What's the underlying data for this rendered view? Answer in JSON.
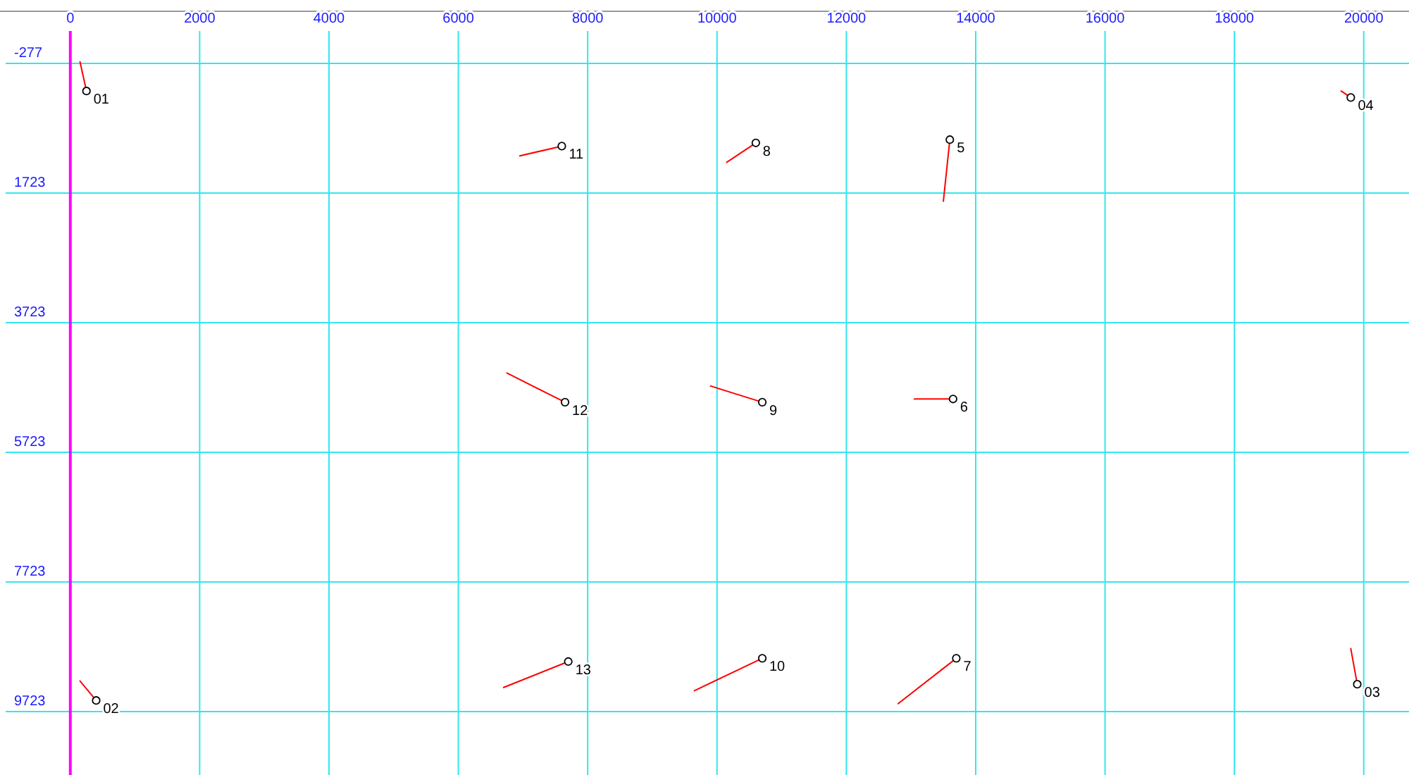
{
  "chart_data": {
    "type": "scatter",
    "xlim": [
      -1000,
      20700
    ],
    "ylim": [
      10700,
      -1080
    ],
    "xticks": [
      0,
      2000,
      4000,
      6000,
      8000,
      10000,
      12000,
      14000,
      16000,
      18000,
      20000
    ],
    "yticks": [
      -277,
      1723,
      3723,
      5723,
      7723,
      9723
    ],
    "grid": true,
    "series": [
      {
        "type": "line",
        "color": "#ff0000",
        "x": [
          150,
          250
        ],
        "values": [
          -300,
          150
        ]
      },
      {
        "type": "line",
        "color": "#ff0000",
        "x": [
          150,
          400
        ],
        "values": [
          9250,
          9550
        ]
      },
      {
        "type": "line",
        "color": "#ff0000",
        "x": [
          19800,
          19900
        ],
        "values": [
          8750,
          9300
        ]
      },
      {
        "type": "line",
        "color": "#ff0000",
        "x": [
          19650,
          19800
        ],
        "values": [
          150,
          250
        ]
      },
      {
        "type": "line",
        "color": "#ff0000",
        "x": [
          13500,
          13600
        ],
        "values": [
          1850,
          900
        ]
      },
      {
        "type": "line",
        "color": "#ff0000",
        "x": [
          13050,
          13650
        ],
        "values": [
          4900,
          4900
        ]
      },
      {
        "type": "line",
        "color": "#ff0000",
        "x": [
          12800,
          13700
        ],
        "values": [
          9600,
          8900
        ]
      },
      {
        "type": "line",
        "color": "#ff0000",
        "x": [
          10150,
          10600
        ],
        "values": [
          1250,
          950
        ]
      },
      {
        "type": "line",
        "color": "#ff0000",
        "x": [
          9900,
          10700
        ],
        "values": [
          4700,
          4950
        ]
      },
      {
        "type": "line",
        "color": "#ff0000",
        "x": [
          9650,
          10700
        ],
        "values": [
          9400,
          8900
        ]
      },
      {
        "type": "line",
        "color": "#ff0000",
        "x": [
          6950,
          7600
        ],
        "values": [
          1150,
          1000
        ]
      },
      {
        "type": "line",
        "color": "#ff0000",
        "x": [
          6750,
          7650
        ],
        "values": [
          4500,
          4950
        ]
      },
      {
        "type": "line",
        "color": "#ff0000",
        "x": [
          6700,
          7700
        ],
        "values": [
          9350,
          8950
        ]
      },
      {
        "color": "#000000",
        "marker": "circle",
        "x": [
          250,
          400,
          19900,
          19800,
          13600,
          13650,
          13700,
          10600,
          10700,
          10700,
          7600,
          7650,
          7700
        ],
        "values": [
          150,
          9550,
          9300,
          250,
          900,
          4900,
          8900,
          950,
          4950,
          8900,
          1000,
          4950,
          8950
        ]
      }
    ],
    "annotations": [
      {
        "text": "01",
        "x": 250,
        "y": 150
      },
      {
        "text": "02",
        "x": 400,
        "y": 9550
      },
      {
        "text": "03",
        "x": 19900,
        "y": 9300
      },
      {
        "text": "04",
        "x": 19800,
        "y": 250
      },
      {
        "text": "5",
        "x": 13600,
        "y": 900
      },
      {
        "text": "6",
        "x": 13650,
        "y": 4900
      },
      {
        "text": "7",
        "x": 13700,
        "y": 8900
      },
      {
        "text": "8",
        "x": 10600,
        "y": 950
      },
      {
        "text": "9",
        "x": 10700,
        "y": 4950
      },
      {
        "text": "10",
        "x": 10700,
        "y": 8900
      },
      {
        "text": "11",
        "x": 7600,
        "y": 1000
      },
      {
        "text": "12",
        "x": 7650,
        "y": 4950
      },
      {
        "text": "13",
        "x": 7700,
        "y": 8950
      }
    ]
  }
}
